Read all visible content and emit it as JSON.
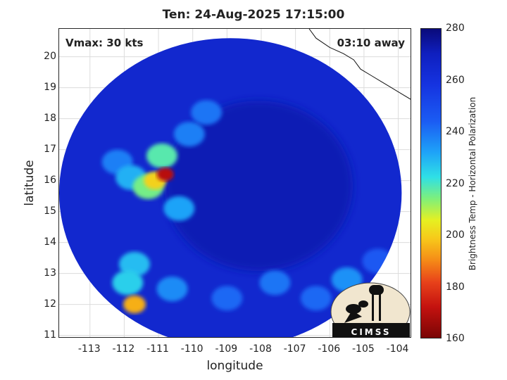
{
  "chart_data": {
    "type": "heatmap",
    "title": "Ten: 24-Aug-2025 17:15:00",
    "xlabel": "longitude",
    "ylabel": "latitude",
    "xlim": [
      -113.9,
      -103.6
    ],
    "ylim": [
      10.9,
      20.9
    ],
    "xticks": [
      -113,
      -112,
      -111,
      -110,
      -109,
      -108,
      -107,
      -106,
      -105,
      -104
    ],
    "yticks": [
      11,
      12,
      13,
      14,
      15,
      16,
      17,
      18,
      19,
      20
    ],
    "grid": true,
    "colorbar": {
      "label": "Brightness Temp - Horizontal Polarization",
      "range": [
        160,
        280
      ],
      "ticks": [
        280,
        260,
        240,
        220,
        200,
        180,
        160
      ]
    },
    "annotations": {
      "vmax": "Vmax: 30 kts",
      "time_away": "03:10 away"
    },
    "swath": {
      "center": [
        -108.9,
        15.6
      ],
      "radius_deg": 5.0,
      "background_temp": 265
    },
    "features": [
      {
        "lon": -110.8,
        "lat": 16.2,
        "temp": 170
      },
      {
        "lon": -111.1,
        "lat": 16.0,
        "temp": 200
      },
      {
        "lon": -111.3,
        "lat": 15.8,
        "temp": 215
      },
      {
        "lon": -110.9,
        "lat": 16.8,
        "temp": 218
      },
      {
        "lon": -110.4,
        "lat": 15.1,
        "temp": 232
      },
      {
        "lon": -111.8,
        "lat": 16.1,
        "temp": 230
      },
      {
        "lon": -110.1,
        "lat": 17.5,
        "temp": 238
      },
      {
        "lon": -109.6,
        "lat": 18.2,
        "temp": 240
      },
      {
        "lon": -112.2,
        "lat": 16.6,
        "temp": 238
      },
      {
        "lon": -111.7,
        "lat": 13.3,
        "temp": 228
      },
      {
        "lon": -111.7,
        "lat": 12.0,
        "temp": 195
      },
      {
        "lon": -111.9,
        "lat": 12.7,
        "temp": 225
      },
      {
        "lon": -110.6,
        "lat": 12.5,
        "temp": 236
      },
      {
        "lon": -107.6,
        "lat": 12.7,
        "temp": 240
      },
      {
        "lon": -105.5,
        "lat": 12.8,
        "temp": 235
      },
      {
        "lon": -106.4,
        "lat": 12.2,
        "temp": 242
      },
      {
        "lon": -104.6,
        "lat": 13.4,
        "temp": 245
      },
      {
        "lon": -109.0,
        "lat": 12.2,
        "temp": 242
      }
    ],
    "coastline": [
      [
        -106.6,
        20.9
      ],
      [
        -106.4,
        20.6
      ],
      [
        -106.0,
        20.3
      ],
      [
        -105.6,
        20.1
      ],
      [
        -105.3,
        19.9
      ],
      [
        -105.1,
        19.6
      ],
      [
        -104.8,
        19.4
      ],
      [
        -104.5,
        19.2
      ],
      [
        -104.2,
        19.0
      ],
      [
        -103.9,
        18.8
      ],
      [
        -103.6,
        18.6
      ]
    ],
    "logo": "CIMSS"
  }
}
